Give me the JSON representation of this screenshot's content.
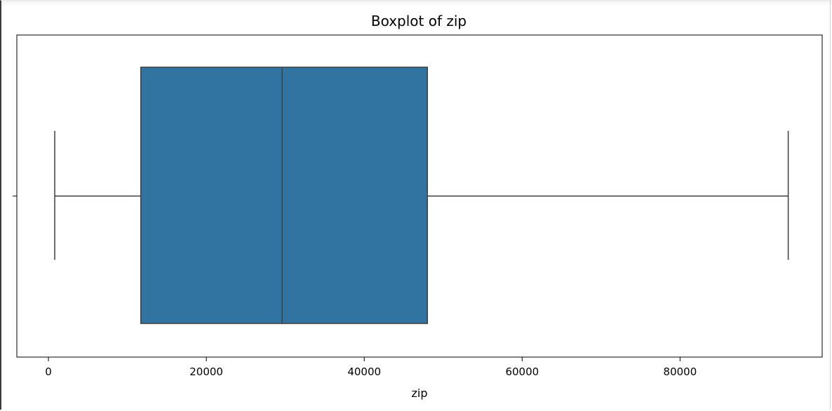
{
  "chart_data": {
    "type": "boxplot",
    "title": "Boxplot of zip",
    "xlabel": "zip",
    "ylabel": "",
    "orientation": "horizontal",
    "xlim": [
      -4000,
      98000
    ],
    "xticks": [
      0,
      20000,
      40000,
      60000,
      80000
    ],
    "xtick_labels": [
      "0",
      "20000",
      "40000",
      "60000",
      "80000"
    ],
    "grid": false,
    "box": {
      "whisker_low": 800,
      "q1": 11700,
      "median": 29600,
      "q3": 48000,
      "whisker_high": 93700,
      "color": "#3274a1",
      "edge_color": "#3f3f3f"
    }
  }
}
